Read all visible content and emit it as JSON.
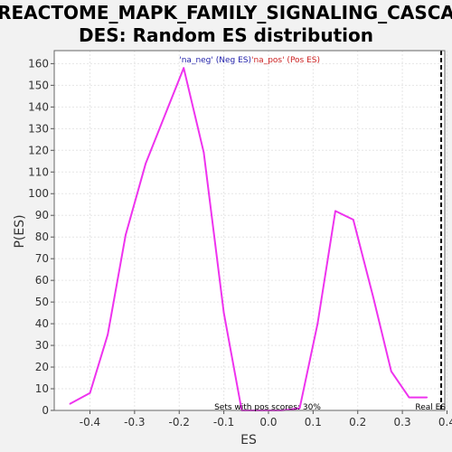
{
  "chart_data": {
    "type": "line",
    "title_line1": "REACTOME_MAPK_FAMILY_SIGNALING_CASCA",
    "title_line2": "DES: Random ES distribution",
    "xlabel": "ES",
    "ylabel": "P(ES)",
    "xlim": [
      -0.48,
      0.395
    ],
    "ylim": [
      0,
      166
    ],
    "x_ticks": [
      "-0.4",
      "-0.3",
      "-0.2",
      "-0.1",
      "0.0",
      "0.1",
      "0.2",
      "0.3",
      "0.4"
    ],
    "x_tick_values": [
      -0.4,
      -0.3,
      -0.2,
      -0.1,
      0.0,
      0.1,
      0.2,
      0.3,
      0.4
    ],
    "y_ticks": [
      "0",
      "10",
      "20",
      "30",
      "40",
      "50",
      "60",
      "70",
      "80",
      "90",
      "100",
      "110",
      "120",
      "130",
      "140",
      "150",
      "160"
    ],
    "y_tick_values": [
      0,
      10,
      20,
      30,
      40,
      50,
      60,
      70,
      80,
      90,
      100,
      110,
      120,
      130,
      140,
      150,
      160
    ],
    "grid": true,
    "legend_neg": "'na_neg' (Neg ES)",
    "legend_pos": "'na_pos' (Pos ES)",
    "annotation": "Sets with pos scores: 30%",
    "real_es_label": "Real ES",
    "real_es_value": 0.387,
    "series": [
      {
        "x": [
          -0.445,
          -0.4,
          -0.36,
          -0.32,
          -0.275,
          -0.19,
          -0.145,
          -0.1,
          -0.06,
          -0.03,
          0.0,
          0.03,
          0.07,
          0.11,
          0.15,
          0.19,
          0.235,
          0.275,
          0.315,
          0.355
        ],
        "values": [
          3,
          8,
          35,
          81,
          114,
          158,
          119,
          45,
          0,
          0,
          0,
          0,
          1,
          40,
          92,
          88,
          52,
          18,
          6,
          6
        ],
        "color": "#ee33ee"
      }
    ],
    "colors": {
      "plot_bg": "#ffffff",
      "page_bg": "#f2f2f2",
      "grid": "#e6e6e6",
      "neg_label": "#2222aa",
      "pos_label": "#cc2222"
    }
  }
}
